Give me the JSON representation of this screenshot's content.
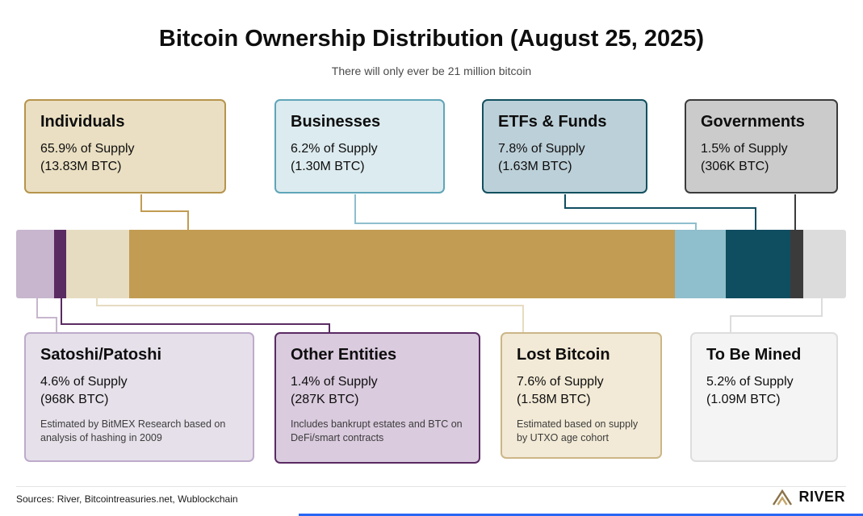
{
  "title": "Bitcoin Ownership Distribution (August 25, 2025)",
  "subtitle": "There will only ever be 21 million bitcoin",
  "top_cards": [
    {
      "title": "Individuals",
      "supply": "65.9% of Supply",
      "amount": "(13.83M BTC)"
    },
    {
      "title": "Businesses",
      "supply": "6.2% of Supply",
      "amount": "(1.30M BTC)"
    },
    {
      "title": "ETFs & Funds",
      "supply": "7.8% of Supply",
      "amount": "(1.63M BTC)"
    },
    {
      "title": "Governments",
      "supply": "1.5% of Supply",
      "amount": "(306K BTC)"
    }
  ],
  "bottom_cards": [
    {
      "title": "Satoshi/Patoshi",
      "supply": "4.6% of Supply",
      "amount": "(968K BTC)",
      "note": "Estimated by BitMEX Research based on analysis of hashing in 2009"
    },
    {
      "title": "Other Entities",
      "supply": "1.4% of Supply",
      "amount": "(287K BTC)",
      "note": "Includes bankrupt estates and BTC on DeFi/smart contracts"
    },
    {
      "title": "Lost Bitcoin",
      "supply": "7.6% of Supply",
      "amount": "(1.58M BTC)",
      "note": "Estimated based on supply by UTXO age cohort"
    },
    {
      "title": "To Be Mined",
      "supply": "5.2% of Supply",
      "amount": "(1.09M BTC)",
      "note": ""
    }
  ],
  "chart_data": {
    "type": "bar",
    "orientation": "horizontal-stacked",
    "title": "Bitcoin Ownership Distribution (August 25, 2025)",
    "subtitle": "There will only ever be 21 million bitcoin",
    "categories": [
      "Satoshi/Patoshi",
      "Other Entities",
      "Lost Bitcoin",
      "Individuals",
      "Businesses",
      "ETFs & Funds",
      "Governments",
      "To Be Mined"
    ],
    "values": [
      4.6,
      1.4,
      7.6,
      65.9,
      6.2,
      7.8,
      1.5,
      5.2
    ],
    "btc_amounts": [
      "968K BTC",
      "287K BTC",
      "1.58M BTC",
      "13.83M BTC",
      "1.30M BTC",
      "1.63M BTC",
      "306K BTC",
      "1.09M BTC"
    ],
    "colors": [
      "#C7B6CE",
      "#5A2B63",
      "#E6DCC1",
      "#C19C52",
      "#8FBECD",
      "#0F4D60",
      "#3B3B3B",
      "#DCDCDC"
    ],
    "total": 100
  },
  "footer": {
    "sources": "Sources: River, Bitcointreasuries.net, Wublockchain",
    "brand": "RIVER"
  }
}
